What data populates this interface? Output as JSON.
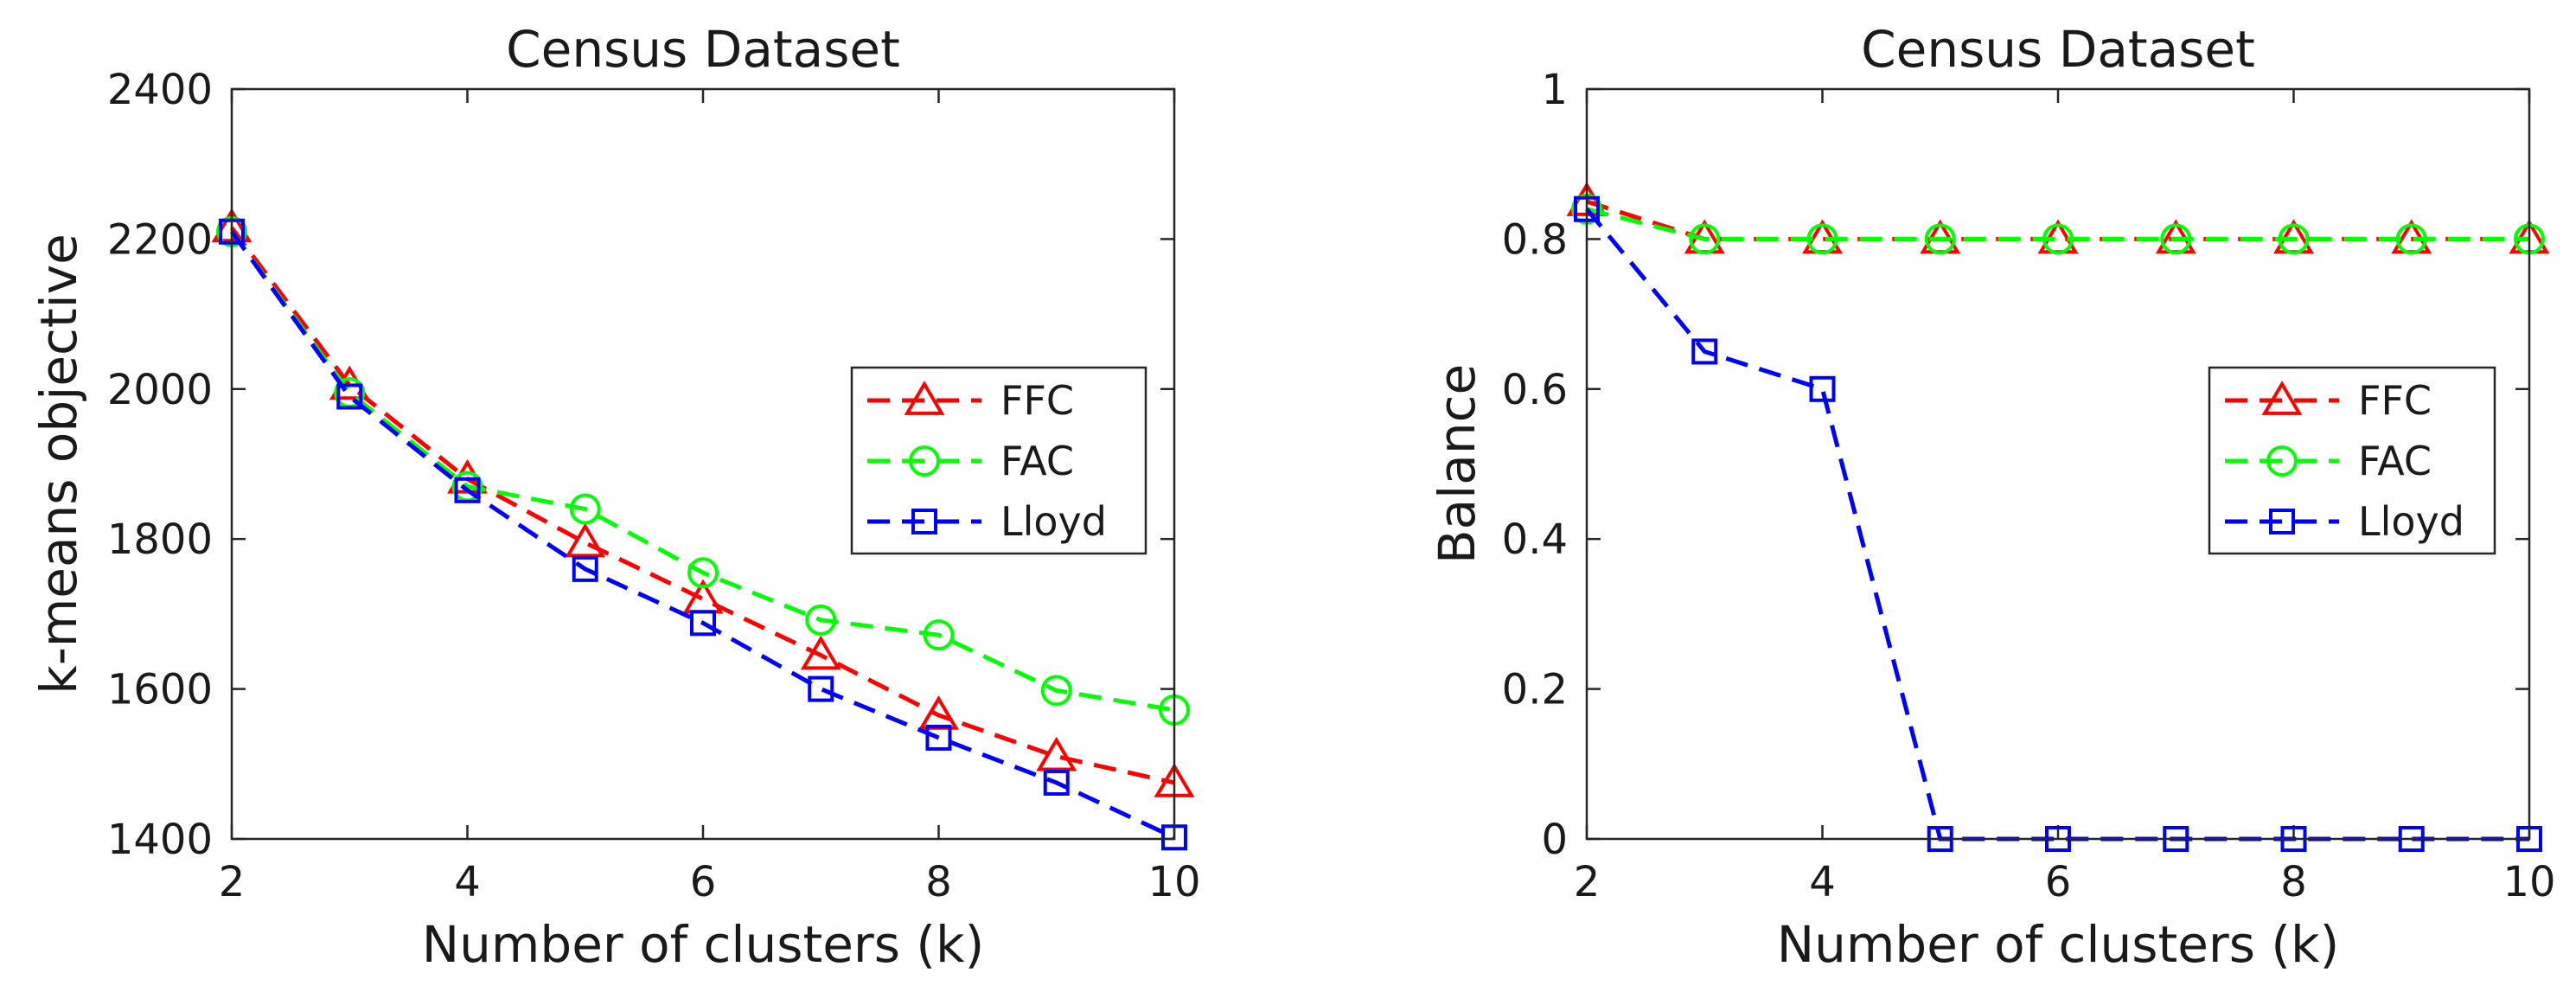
{
  "chart_data": [
    {
      "type": "line",
      "title": "Census Dataset",
      "xlabel": "Number of clusters (k)",
      "ylabel": "k-means objective",
      "xlim": [
        2,
        10
      ],
      "ylim": [
        1400,
        2400
      ],
      "xticks": [
        2,
        4,
        6,
        8,
        10
      ],
      "yticks": [
        1400,
        1600,
        1800,
        2000,
        2200,
        2400
      ],
      "x": [
        2,
        3,
        4,
        5,
        6,
        7,
        8,
        9,
        10
      ],
      "legend_position": "right",
      "series": [
        {
          "name": "FFC",
          "color": "#ff0000",
          "marker": "triangle",
          "values": [
            2215,
            2005,
            1880,
            1795,
            1720,
            1645,
            1565,
            1510,
            1475
          ]
        },
        {
          "name": "FAC",
          "color": "#00ff00",
          "marker": "circle",
          "values": [
            2210,
            1995,
            1870,
            1840,
            1755,
            1692,
            1672,
            1598,
            1572
          ]
        },
        {
          "name": "Lloyd",
          "color": "#0000ff",
          "marker": "square",
          "values": [
            2210,
            1990,
            1865,
            1760,
            1688,
            1600,
            1535,
            1475,
            1402
          ]
        }
      ]
    },
    {
      "type": "line",
      "title": "Census Dataset",
      "xlabel": "Number of clusters (k)",
      "ylabel": "Balance",
      "xlim": [
        2,
        10
      ],
      "ylim": [
        0,
        1
      ],
      "xticks": [
        2,
        4,
        6,
        8,
        10
      ],
      "yticks": [
        0,
        0.2,
        0.4,
        0.6,
        0.8,
        1
      ],
      "x": [
        2,
        3,
        4,
        5,
        6,
        7,
        8,
        9,
        10
      ],
      "legend_position": "right",
      "series": [
        {
          "name": "FFC",
          "color": "#ff0000",
          "marker": "triangle",
          "values": [
            0.85,
            0.8,
            0.8,
            0.8,
            0.8,
            0.8,
            0.8,
            0.8,
            0.8
          ]
        },
        {
          "name": "FAC",
          "color": "#00ff00",
          "marker": "circle",
          "values": [
            0.84,
            0.8,
            0.8,
            0.8,
            0.8,
            0.8,
            0.8,
            0.8,
            0.8
          ]
        },
        {
          "name": "Lloyd",
          "color": "#0000ff",
          "marker": "square",
          "values": [
            0.84,
            0.65,
            0.6,
            0.0,
            0.0,
            0.0,
            0.0,
            0.0,
            0.0
          ]
        }
      ]
    }
  ]
}
